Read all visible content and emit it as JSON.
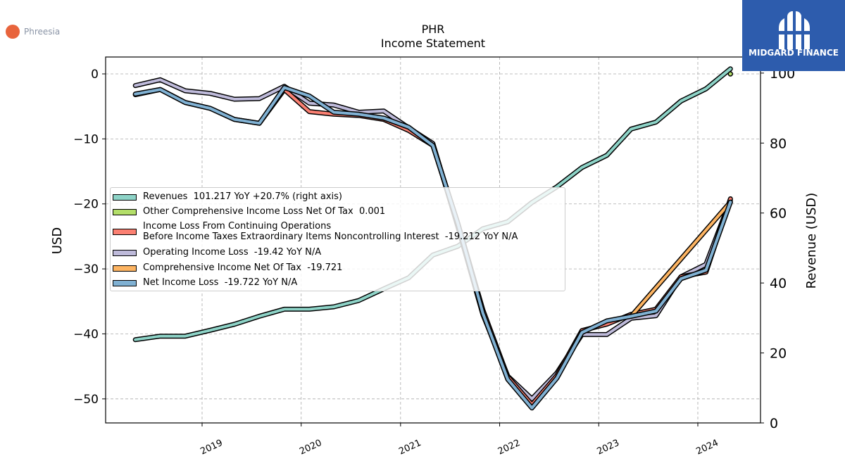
{
  "brand": {
    "left_logo_text": "Phreesia",
    "right_logo_text": "MIDGARD FINANCE",
    "right_logo_color": "#2d5cad",
    "left_logo_color": "#e8643c"
  },
  "chart_data": {
    "type": "line",
    "title": "PHR",
    "subtitle": "Income Statement",
    "ylabel": "USD",
    "ylabel_right": "Revenue (USD)",
    "xlabel": "",
    "x_tick_labels": [
      "2019",
      "2020",
      "2021",
      "2022",
      "2023",
      "2024"
    ],
    "y_left_ticks": [
      "0",
      "−10",
      "−20",
      "−30",
      "−40",
      "−50"
    ],
    "y_right_ticks": [
      "0",
      "20",
      "40",
      "60",
      "80",
      "100"
    ],
    "ylim_left": [
      -53.7,
      2.6
    ],
    "ylim_right": [
      0,
      104.6
    ],
    "x_dates": [
      "2018-04-30",
      "2018-07-31",
      "2018-10-31",
      "2019-01-31",
      "2019-04-30",
      "2019-07-31",
      "2019-10-31",
      "2020-01-31",
      "2020-04-30",
      "2020-07-31",
      "2020-10-31",
      "2021-01-31",
      "2021-04-30",
      "2021-07-31",
      "2021-10-31",
      "2022-01-31",
      "2022-04-30",
      "2022-07-31",
      "2022-10-31",
      "2023-01-31",
      "2023-04-30",
      "2023-07-31",
      "2023-10-31",
      "2024-01-31",
      "2024-04-30"
    ],
    "grid": true,
    "legend_position": "center-left",
    "series": [
      {
        "name": "Revenues",
        "legend_label": "Revenues  101.217 YoY +20.7% (right axis)",
        "axis": "right",
        "color": "#8dd3c7",
        "values": [
          23.8,
          24.8,
          24.8,
          26.5,
          28.2,
          30.5,
          32.5,
          32.5,
          33.2,
          35.0,
          38.3,
          41.5,
          48.0,
          50.5,
          55.5,
          57.5,
          63.0,
          67.5,
          73.0,
          76.5,
          84.0,
          86.0,
          92.0,
          95.5,
          101.217
        ]
      },
      {
        "name": "Other Comprehensive Income Loss Net Of Tax",
        "legend_label": "Other Comprehensive Income Loss Net Of Tax  0.001",
        "axis": "left",
        "color": "#b3de69",
        "values": [
          null,
          null,
          null,
          null,
          null,
          null,
          null,
          null,
          null,
          null,
          null,
          null,
          null,
          null,
          null,
          null,
          null,
          null,
          null,
          null,
          null,
          null,
          null,
          null,
          0.001
        ]
      },
      {
        "name": "Income Loss From Continuing Operations Before Income Taxes Extraordinary Items Noncontrolling Interest",
        "legend_label": "Income Loss From Continuing Operations\nBefore Income Taxes Extraordinary Items Noncontrolling Interest  -19.212 YoY N/A",
        "axis": "left",
        "color": "#fb8072",
        "values": [
          -3.2,
          -2.4,
          -4.4,
          -5.3,
          -7.0,
          -7.6,
          -2.4,
          -5.8,
          -6.2,
          -6.4,
          -7.0,
          -8.7,
          -11.0,
          -23.0,
          -36.3,
          -46.6,
          -50.9,
          -46.4,
          -39.5,
          -38.5,
          -37.0,
          -36.2,
          -31.2,
          -30.5,
          -19.212
        ]
      },
      {
        "name": "Operating Income Loss",
        "legend_label": "Operating Income Loss  -19.42 YoY N/A",
        "axis": "left",
        "color": "#bebada",
        "values": [
          -1.8,
          -0.9,
          -2.6,
          -3.0,
          -3.9,
          -3.8,
          -1.9,
          -4.5,
          -4.8,
          -5.9,
          -5.7,
          -8.3,
          -10.7,
          -23.5,
          -37.0,
          -46.5,
          -50.0,
          -46.0,
          -40.1,
          -40.1,
          -37.6,
          -37.2,
          -31.2,
          -29.3,
          -19.42
        ]
      },
      {
        "name": "Comprehensive Income Net Of Tax",
        "legend_label": "Comprehensive Income Net Of Tax  -19.721",
        "axis": "left",
        "color": "#fdb462",
        "values": [
          null,
          null,
          null,
          null,
          null,
          null,
          null,
          null,
          null,
          null,
          null,
          null,
          null,
          null,
          null,
          null,
          null,
          null,
          null,
          null,
          -37.3,
          null,
          null,
          null,
          -19.721
        ]
      },
      {
        "name": "Net Income Loss",
        "legend_label": "Net Income Loss  -19.722 YoY N/A",
        "axis": "left",
        "color": "#80b1d3",
        "values": [
          -3.1,
          -2.4,
          -4.4,
          -5.3,
          -7.0,
          -7.6,
          -2.1,
          -3.4,
          -5.9,
          -6.2,
          -6.8,
          -8.2,
          -11.0,
          -23.0,
          -36.8,
          -47.0,
          -51.4,
          -46.8,
          -39.8,
          -38.0,
          -37.3,
          -36.5,
          -31.5,
          -30.2,
          -19.722
        ]
      }
    ]
  }
}
